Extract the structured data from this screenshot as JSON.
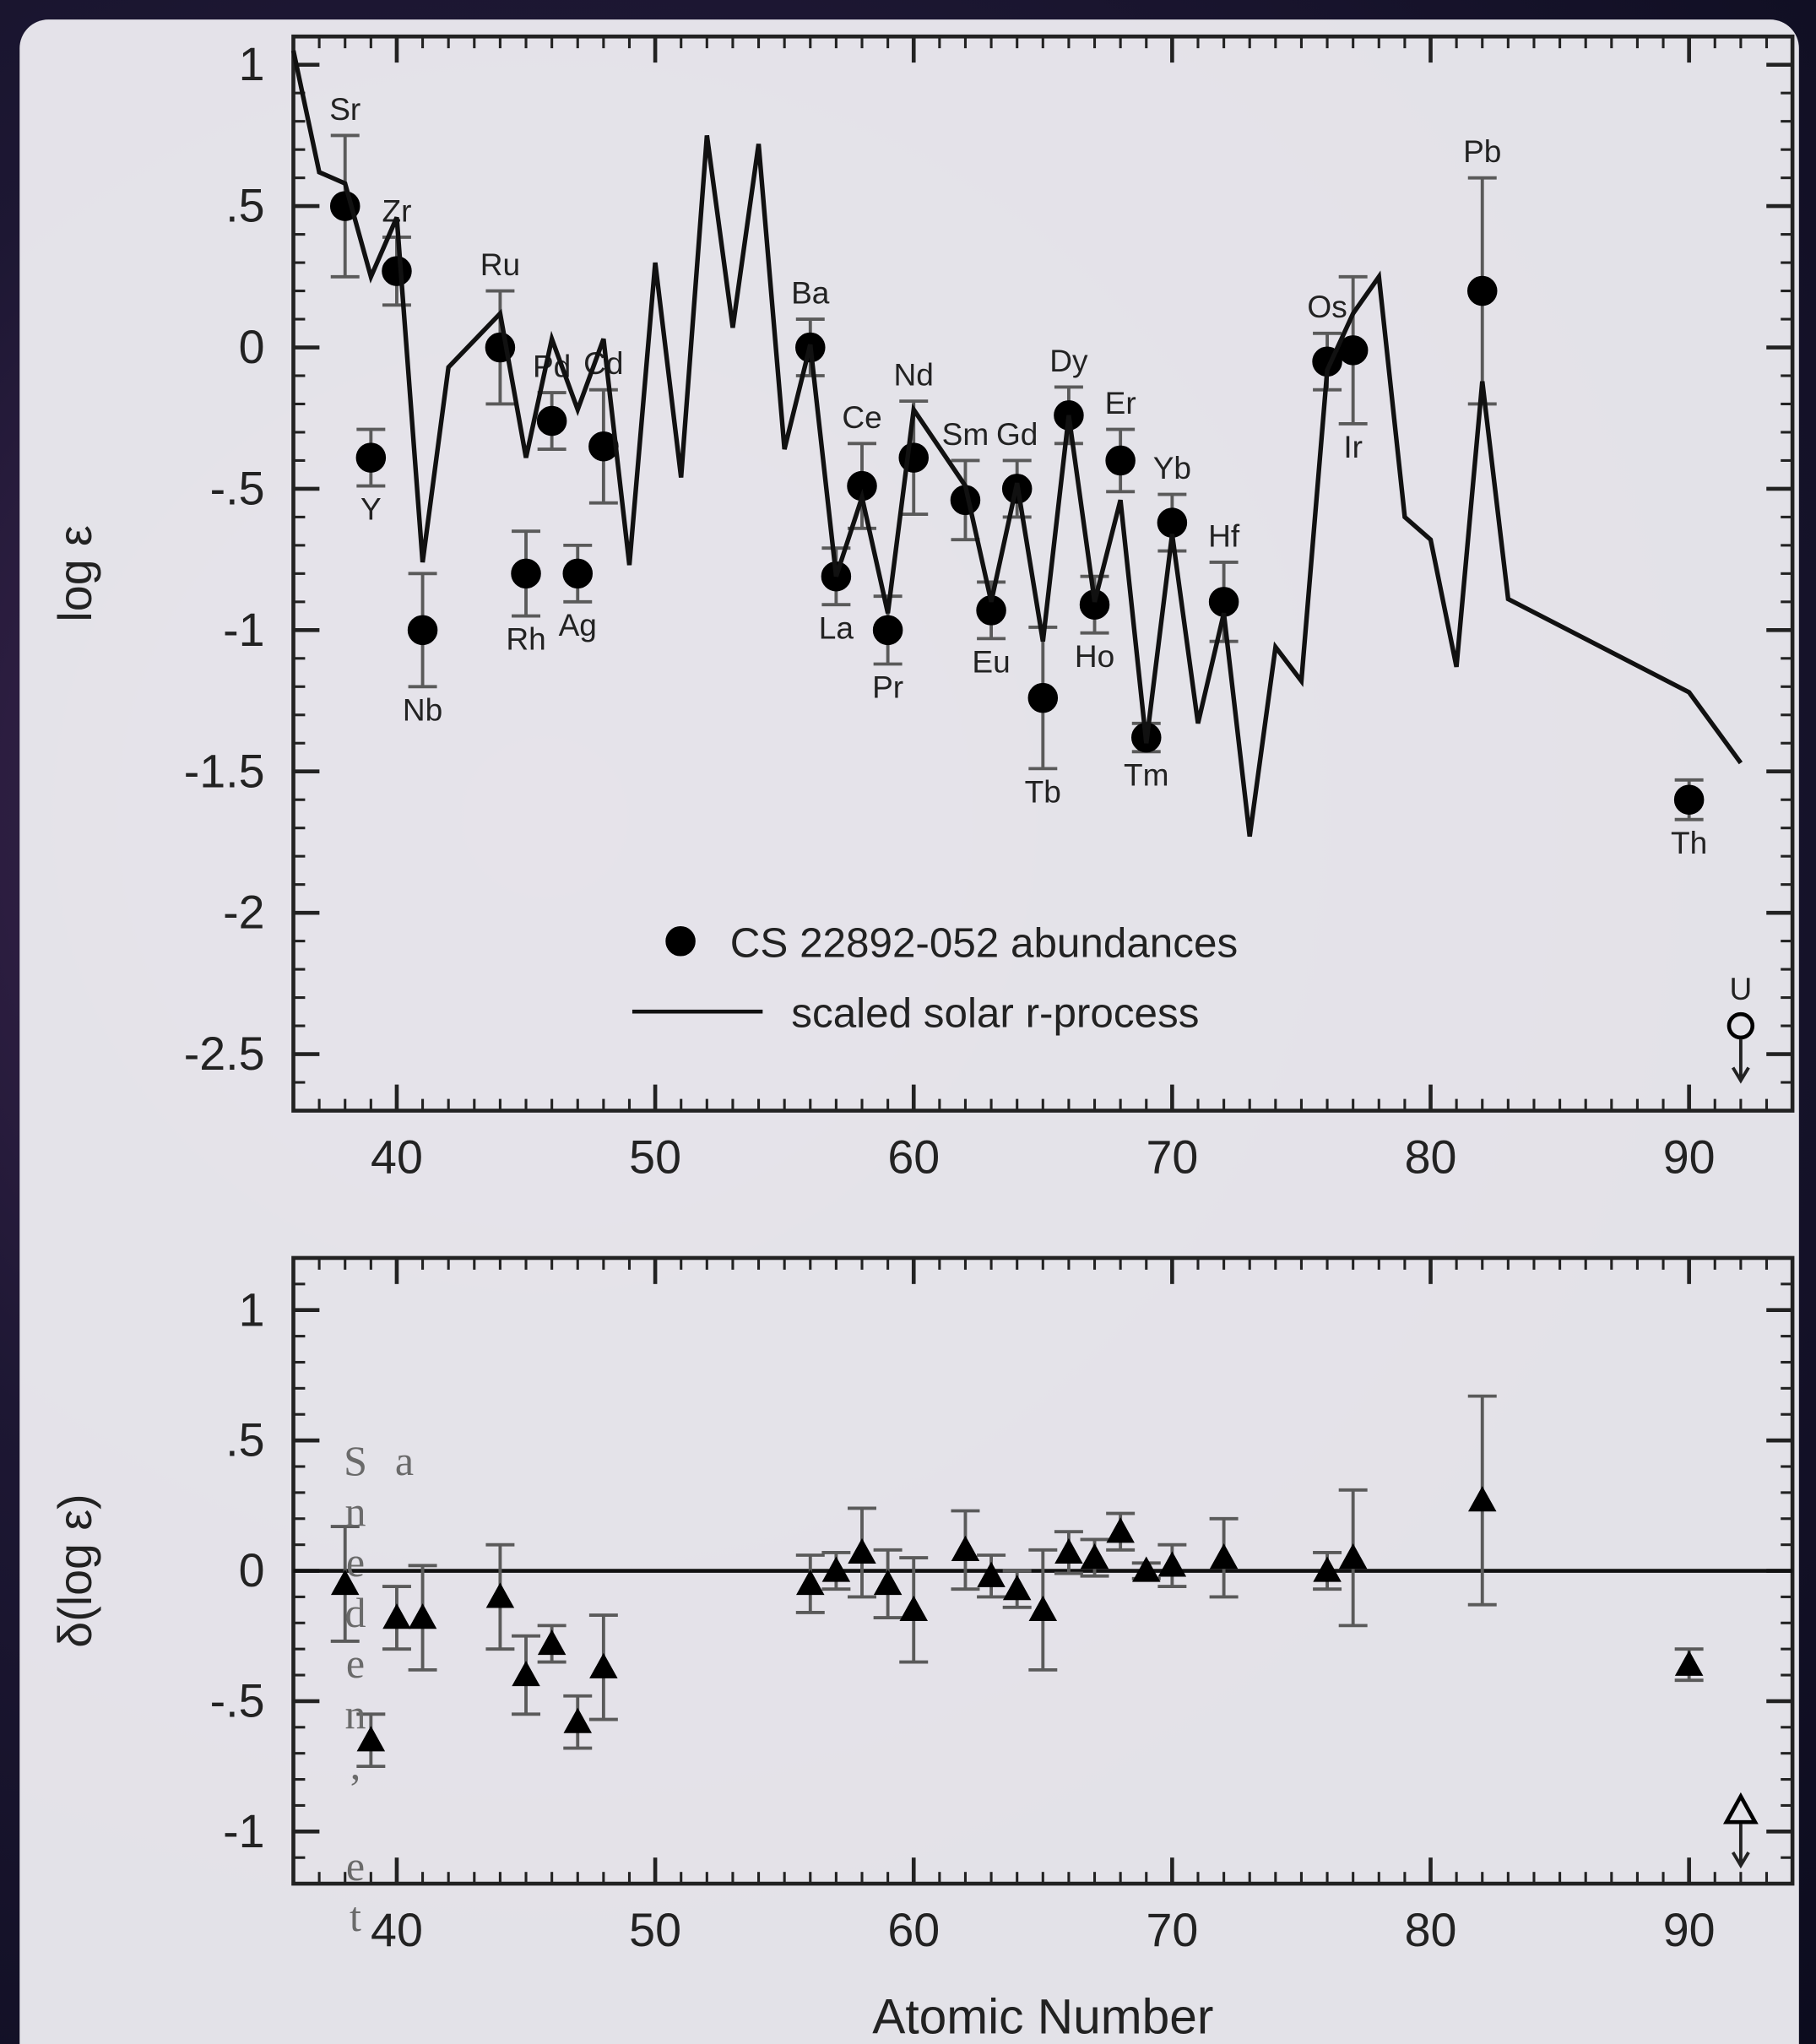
{
  "background_caption": "Sneden, et a",
  "chart_data": [
    {
      "type": "scatter",
      "ylabel": "log ε",
      "xlim": [
        36,
        94
      ],
      "ylim": [
        -2.7,
        1.1
      ],
      "xticks": [
        40,
        50,
        60,
        70,
        80,
        90
      ],
      "xminorticks": [
        37,
        38,
        39,
        40,
        41,
        42,
        43,
        44,
        45,
        46,
        47,
        48,
        49,
        50,
        51,
        52,
        53,
        54,
        55,
        56,
        57,
        58,
        59,
        60,
        61,
        62,
        63,
        64,
        65,
        66,
        67,
        68,
        69,
        70,
        71,
        72,
        73,
        74,
        75,
        76,
        77,
        78,
        79,
        80,
        81,
        82,
        83,
        84,
        85,
        86,
        87,
        88,
        89,
        90,
        91,
        92,
        93
      ],
      "yticks": [
        1,
        {
          "value": 0.5,
          "label": ".5"
        },
        0,
        {
          "value": -0.5,
          "label": "-.5"
        },
        -1,
        -1.5,
        -2,
        -2.5
      ],
      "yminorticks": [
        -2.6,
        -2.5,
        -2.4,
        -2.3,
        -2.2,
        -2.1,
        -2,
        -1.9,
        -1.8,
        -1.7,
        -1.6,
        -1.5,
        -1.4,
        -1.3,
        -1.2,
        -1.1,
        -1,
        -0.9,
        -0.8,
        -0.7,
        -0.6,
        -0.5,
        -0.4,
        -0.3,
        -0.2,
        -0.1,
        0,
        0.1,
        0.2,
        0.3,
        0.4,
        0.5,
        0.6,
        0.7,
        0.8,
        0.9,
        1
      ],
      "legend": "lower center",
      "series": [
        {
          "name": "CS 22892-052 abundances",
          "type": "errorbar",
          "marker": "circle",
          "color": "#000000",
          "error_color": "#5a5a5a",
          "x": [
            38,
            39,
            40,
            41,
            44,
            45,
            46,
            47,
            48,
            56,
            57,
            58,
            59,
            60,
            62,
            63,
            64,
            65,
            66,
            67,
            68,
            69,
            70,
            72,
            76,
            77,
            82,
            90
          ],
          "values": [
            0.5,
            -0.39,
            0.27,
            -1,
            0,
            -0.8,
            -0.26,
            -0.8,
            -0.35,
            0,
            -0.81,
            -0.49,
            -1,
            -0.39,
            -0.54,
            -0.93,
            -0.5,
            -1.24,
            -0.24,
            -0.91,
            -0.4,
            -1.38,
            -0.62,
            -0.9,
            -0.05,
            -0.01,
            0.2,
            -1.6
          ],
          "errors": [
            0.25,
            0.1,
            0.12,
            0.2,
            0.2,
            0.15,
            0.1,
            0.1,
            0.2,
            0.1,
            0.1,
            0.15,
            0.12,
            0.2,
            0.14,
            0.1,
            0.1,
            0.25,
            0.1,
            0.1,
            0.11,
            0.05,
            0.1,
            0.14,
            0.1,
            0.26,
            0.4,
            0.07
          ],
          "labels": [
            "Sr",
            "Y",
            "Zr",
            "Nb",
            "Ru",
            "Rh",
            "Pd",
            "Ag",
            "Cd",
            "Ba",
            "La",
            "Ce",
            "Pr",
            "Nd",
            "Sm",
            "Eu",
            "Gd",
            "Tb",
            "Dy",
            "Ho",
            "Er",
            "Tm",
            "Yb",
            "Hf",
            "Os",
            "Ir",
            "Pb",
            "Th"
          ]
        },
        {
          "name": "scaled solar r-process",
          "type": "line",
          "color": "#111111",
          "x": [
            36,
            37,
            38,
            39,
            40,
            41,
            42,
            44,
            45,
            46,
            47,
            48,
            49,
            50,
            51,
            52,
            53,
            54,
            55,
            56,
            57,
            58,
            59,
            60,
            62,
            63,
            64,
            65,
            66,
            67,
            68,
            69,
            70,
            71,
            72,
            73,
            74,
            75,
            76,
            77,
            78,
            79,
            80,
            81,
            82,
            83,
            90,
            92
          ],
          "values": [
            1.05,
            0.62,
            0.58,
            0.25,
            0.46,
            -0.76,
            -0.07,
            0.12,
            -0.39,
            0.03,
            -0.22,
            0.03,
            -0.77,
            0.3,
            -0.46,
            0.75,
            0.07,
            0.72,
            -0.36,
            0.01,
            -0.81,
            -0.53,
            -0.94,
            -0.22,
            -0.49,
            -0.9,
            -0.48,
            -1.04,
            -0.24,
            -0.9,
            -0.54,
            -1.4,
            -0.66,
            -1.33,
            -0.94,
            -1.73,
            -1.06,
            -1.18,
            -0.08,
            0.12,
            0.25,
            -0.6,
            -0.68,
            -1.13,
            -0.12,
            -0.89,
            -1.22,
            -1.47
          ]
        }
      ],
      "upper_limits": {
        "marker": "circle",
        "x": [
          92
        ],
        "values": [
          -2.4
        ],
        "labels": [
          "U"
        ]
      }
    },
    {
      "type": "scatter",
      "ylabel": "δ(log ε)",
      "xlabel": "Atomic Number",
      "xlim": [
        36,
        94
      ],
      "ylim": [
        -1.2,
        1.2
      ],
      "xticks": [
        40,
        50,
        60,
        70,
        80,
        90
      ],
      "xminorticks": [
        37,
        38,
        39,
        40,
        41,
        42,
        43,
        44,
        45,
        46,
        47,
        48,
        49,
        50,
        51,
        52,
        53,
        54,
        55,
        56,
        57,
        58,
        59,
        60,
        61,
        62,
        63,
        64,
        65,
        66,
        67,
        68,
        69,
        70,
        71,
        72,
        73,
        74,
        75,
        76,
        77,
        78,
        79,
        80,
        81,
        82,
        83,
        84,
        85,
        86,
        87,
        88,
        89,
        90,
        91,
        92,
        93
      ],
      "yticks": [
        1,
        {
          "value": 0.5,
          "label": ".5"
        },
        0,
        {
          "value": -0.5,
          "label": "-.5"
        },
        -1
      ],
      "yminorticks": [
        -1.1,
        -1,
        -0.9,
        -0.8,
        -0.7,
        -0.6,
        -0.5,
        -0.4,
        -0.3,
        -0.2,
        -0.1,
        0,
        0.1,
        0.2,
        0.3,
        0.4,
        0.5,
        0.6,
        0.7,
        0.8,
        0.9,
        1,
        1.1
      ],
      "reference_line": 0,
      "series": [
        {
          "type": "errorbar",
          "marker": "triangle",
          "color": "#000000",
          "error_color": "#5a5a5a",
          "x": [
            38,
            39,
            40,
            41,
            44,
            45,
            46,
            47,
            48,
            56,
            57,
            58,
            59,
            60,
            62,
            63,
            64,
            65,
            66,
            67,
            68,
            69,
            70,
            72,
            76,
            77,
            82,
            90
          ],
          "values": [
            -0.05,
            -0.65,
            -0.18,
            -0.18,
            -0.1,
            -0.4,
            -0.28,
            -0.58,
            -0.37,
            -0.05,
            0,
            0.07,
            -0.05,
            -0.15,
            0.08,
            -0.02,
            -0.07,
            -0.15,
            0.07,
            0.05,
            0.15,
            0,
            0.02,
            0.05,
            0,
            0.05,
            0.27,
            -0.36
          ],
          "errors": [
            0.22,
            0.1,
            0.12,
            0.2,
            0.2,
            0.15,
            0.07,
            0.1,
            0.2,
            0.11,
            0.07,
            0.17,
            0.13,
            0.2,
            0.15,
            0.08,
            0.07,
            0.23,
            0.08,
            0.07,
            0.07,
            0.03,
            0.08,
            0.15,
            0.07,
            0.26,
            0.4,
            0.06
          ]
        }
      ],
      "upper_limits": {
        "marker": "triangle",
        "x": [
          92
        ],
        "values": [
          -0.92
        ]
      }
    }
  ]
}
